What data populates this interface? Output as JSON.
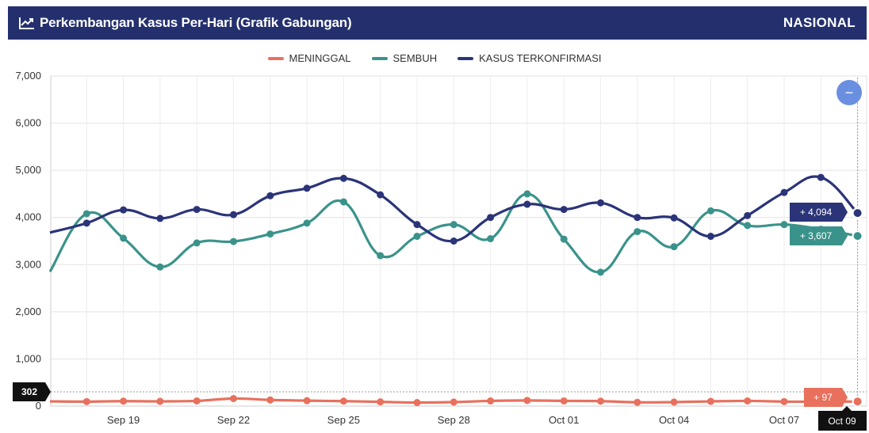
{
  "header": {
    "title": "Perkembangan Kasus Per-Hari (Grafik Gabungan)",
    "right_label": "NASIONAL",
    "icon": "line-chart-icon"
  },
  "legend": [
    {
      "label": "MENINGGAL",
      "color": "#e8705d"
    },
    {
      "label": "SEMBUH",
      "color": "#3a938b"
    },
    {
      "label": "KASUS TERKONFIRMASI",
      "color": "#2b3478"
    }
  ],
  "zoom_button": {
    "label": "−",
    "color": "#6a8fe0"
  },
  "chart_data": {
    "type": "line",
    "x": [
      "Sep 17",
      "Sep 18",
      "Sep 19",
      "Sep 20",
      "Sep 21",
      "Sep 22",
      "Sep 23",
      "Sep 24",
      "Sep 25",
      "Sep 26",
      "Sep 27",
      "Sep 28",
      "Sep 29",
      "Sep 30",
      "Oct 01",
      "Oct 02",
      "Oct 03",
      "Oct 04",
      "Oct 05",
      "Oct 06",
      "Oct 07",
      "Oct 08",
      "Oct 09"
    ],
    "x_tick_labels": [
      "Sep 19",
      "Sep 22",
      "Sep 25",
      "Sep 28",
      "Oct 01",
      "Oct 04",
      "Oct 07"
    ],
    "ylim": [
      0,
      7000
    ],
    "y_ticks": [
      "0",
      "1,000",
      "2,000",
      "3,000",
      "4,000",
      "5,000",
      "6,000",
      "7,000"
    ],
    "grid": true,
    "legend_position": "top-center",
    "series": [
      {
        "name": "MENINGGAL",
        "color": "#e8705d",
        "values": [
          100,
          95,
          105,
          100,
          110,
          160,
          130,
          115,
          105,
          90,
          75,
          85,
          110,
          120,
          110,
          105,
          80,
          85,
          100,
          110,
          95,
          95,
          97
        ]
      },
      {
        "name": "SEMBUH",
        "color": "#3a938b",
        "values": [
          2850,
          4080,
          3560,
          2950,
          3460,
          3490,
          3650,
          3880,
          4330,
          3190,
          3600,
          3850,
          3550,
          4500,
          3540,
          2840,
          3700,
          3380,
          4140,
          3830,
          3850,
          3750,
          3607
        ]
      },
      {
        "name": "KASUS TERKONFIRMASI",
        "color": "#2b3478",
        "values": [
          3680,
          3880,
          4160,
          3980,
          4170,
          4060,
          4460,
          4620,
          4830,
          4480,
          3850,
          3500,
          4000,
          4280,
          4170,
          4310,
          4000,
          3990,
          3600,
          4040,
          4530,
          4850,
          4094
        ]
      }
    ],
    "crosshair": {
      "x_label": "Oct 09",
      "y_label": "302",
      "values": [
        {
          "series": "KASUS TERKONFIRMASI",
          "label": "+ 4,094"
        },
        {
          "series": "SEMBUH",
          "label": "+ 3,607"
        },
        {
          "series": "MENINGGAL",
          "label": "+ 97"
        }
      ]
    }
  }
}
